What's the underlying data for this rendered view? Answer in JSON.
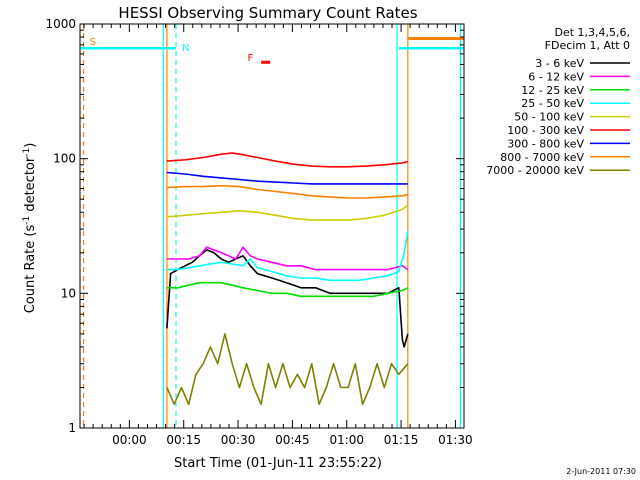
{
  "chart_data": {
    "type": "line",
    "title": "HESSI Observing Summary Count Rates",
    "xlabel": "Start Time (01-Jun-11 23:55:22)",
    "ylabel_parts": [
      "Count Rate (s",
      "-1",
      " detector",
      "-1",
      ")"
    ],
    "yscale": "log",
    "ylim": [
      1,
      1000
    ],
    "xlim_minutes": [
      -9.0,
      97.0
    ],
    "y_ticks": [
      {
        "value": 1,
        "label": "1"
      },
      {
        "value": 10,
        "label": "10"
      },
      {
        "value": 100,
        "label": "100"
      },
      {
        "value": 1000,
        "label": "1000"
      }
    ],
    "x_ticks": [
      {
        "value": 4.63,
        "label": "00:00"
      },
      {
        "value": 19.63,
        "label": "00:15"
      },
      {
        "value": 34.63,
        "label": "00:30"
      },
      {
        "value": 49.63,
        "label": "00:45"
      },
      {
        "value": 64.63,
        "label": "01:00"
      },
      {
        "value": 79.63,
        "label": "01:15"
      },
      {
        "value": 94.63,
        "label": "01:30"
      }
    ],
    "legend": {
      "placement": "right",
      "header": [
        "Det 1,3,4,5,6,",
        "FDecim 1, Att 0"
      ],
      "entries": [
        {
          "label": "3 - 6 keV",
          "color": "#000000"
        },
        {
          "label": "6 - 12 keV",
          "color": "#ff00ff"
        },
        {
          "label": "12 - 25 keV",
          "color": "#00dd00"
        },
        {
          "label": "25 - 50 keV",
          "color": "#00ffff"
        },
        {
          "label": "50 - 100 keV",
          "color": "#cccc00"
        },
        {
          "label": "100 - 300 keV",
          "color": "#ff0000"
        },
        {
          "label": "300 - 800 keV",
          "color": "#0000ff"
        },
        {
          "label": "800 - 7000 keV",
          "color": "#ff8000"
        },
        {
          "label": "7000 - 20000 keV",
          "color": "#808000"
        }
      ]
    },
    "series": [
      {
        "name": "3 - 6 keV",
        "color": "#000000",
        "x": [
          15,
          16,
          18,
          20,
          22,
          24,
          26,
          28,
          30,
          32,
          34,
          36,
          38,
          40,
          44,
          48,
          52,
          56,
          60,
          64,
          68,
          72,
          76,
          79,
          80,
          80.5,
          81.5
        ],
        "y": [
          5.5,
          14,
          15,
          16,
          17,
          19,
          21,
          20,
          18,
          17,
          18,
          19,
          16,
          14,
          13,
          12,
          11,
          11,
          10,
          10,
          10,
          10,
          10,
          11,
          4.5,
          4,
          5
        ]
      },
      {
        "name": "6 - 12 keV",
        "color": "#ff00ff",
        "x": [
          15,
          18,
          21,
          24,
          26,
          28,
          30,
          32,
          34,
          36,
          38,
          40,
          44,
          48,
          52,
          56,
          60,
          64,
          68,
          72,
          76,
          80,
          81.5
        ],
        "y": [
          18,
          18,
          18,
          19,
          22,
          21,
          20,
          19,
          18,
          22,
          19,
          18,
          17,
          16,
          16,
          15,
          15,
          15,
          15,
          15,
          15,
          16,
          15
        ]
      },
      {
        "name": "12 - 25 keV",
        "color": "#00dd00",
        "x": [
          15,
          18,
          21,
          24,
          27,
          30,
          33,
          36,
          40,
          44,
          48,
          52,
          56,
          60,
          64,
          68,
          72,
          76,
          80,
          81.5
        ],
        "y": [
          11,
          11,
          11.5,
          12,
          12,
          12,
          11.5,
          11,
          10.5,
          10,
          10,
          9.5,
          9.5,
          9.5,
          9.5,
          9.5,
          9.5,
          10,
          10.5,
          11
        ]
      },
      {
        "name": "25 - 50 keV",
        "color": "#00ffff",
        "x": [
          15,
          18,
          21,
          24,
          27,
          30,
          33,
          36,
          38,
          40,
          44,
          48,
          52,
          56,
          60,
          64,
          68,
          72,
          76,
          79,
          80.5,
          81.5
        ],
        "y": [
          15,
          15,
          15.5,
          16,
          16.5,
          17,
          16.5,
          16,
          18,
          15.5,
          14.5,
          13.5,
          13,
          13,
          12.5,
          12.5,
          12.5,
          13,
          13.5,
          14.5,
          20,
          29
        ]
      },
      {
        "name": "50 - 100 keV",
        "color": "#cccc00",
        "x": [
          15,
          20,
          25,
          30,
          35,
          40,
          45,
          50,
          55,
          60,
          65,
          70,
          75,
          80,
          81.5
        ],
        "y": [
          37,
          38,
          39,
          40,
          41,
          40,
          38,
          36,
          35,
          35,
          35,
          36,
          38,
          42,
          45
        ]
      },
      {
        "name": "100 - 300 keV",
        "color": "#ff0000",
        "x": [
          15,
          20,
          25,
          30,
          33,
          36,
          40,
          45,
          50,
          55,
          60,
          65,
          70,
          75,
          80,
          81.5
        ],
        "y": [
          96,
          98,
          102,
          108,
          110,
          107,
          102,
          96,
          91,
          88,
          87,
          87,
          88,
          90,
          93,
          95
        ]
      },
      {
        "name": "300 - 800 keV",
        "color": "#0000ff",
        "x": [
          15,
          20,
          25,
          30,
          35,
          40,
          45,
          50,
          55,
          60,
          65,
          70,
          75,
          80,
          81.5
        ],
        "y": [
          79,
          77,
          74,
          72,
          70,
          68,
          67,
          66,
          65,
          65,
          65,
          65,
          65,
          65,
          65
        ]
      },
      {
        "name": "800 - 7000 keV",
        "color": "#ff8000",
        "x": [
          15,
          20,
          25,
          30,
          35,
          40,
          45,
          50,
          55,
          60,
          65,
          70,
          75,
          80,
          81.5
        ],
        "y": [
          61,
          62,
          62,
          63,
          62,
          59,
          57,
          55,
          53,
          52,
          51,
          51,
          52,
          53,
          54
        ]
      },
      {
        "name": "7000 - 20000 keV",
        "color": "#808000",
        "x": [
          15,
          17,
          19,
          21,
          23,
          25,
          27,
          29,
          31,
          33,
          35,
          37,
          39,
          41,
          43,
          45,
          47,
          49,
          51,
          53,
          55,
          57,
          59,
          61,
          63,
          65,
          67,
          69,
          71,
          73,
          75,
          77,
          79,
          81.5
        ],
        "y": [
          2,
          1.5,
          2,
          1.5,
          2.5,
          3,
          4,
          3,
          5,
          3,
          2,
          3,
          2,
          1.5,
          3,
          2,
          3,
          2,
          2.5,
          2,
          3,
          1.5,
          2,
          3,
          2,
          2,
          3,
          1.5,
          2,
          3,
          2,
          3,
          2.5,
          3
        ]
      }
    ],
    "events": [
      {
        "label": "S",
        "x": -8.0,
        "color": "#ff8000"
      },
      {
        "label": "N",
        "x": 17.5,
        "color": "#00ffff"
      },
      {
        "label": "F",
        "x": 40.0,
        "color": "#ff0000"
      }
    ],
    "cyan_vlines": [
      14.0,
      78.5,
      96.0
    ],
    "orange_vlines": [
      15.0,
      81.5
    ],
    "cyan_dashed": [
      17.5,
      96.0
    ],
    "orange_dashed": [
      -8.0
    ],
    "cyan_bands": [
      {
        "x0": -9.0,
        "x1": 17.5,
        "y": 660
      },
      {
        "x0": 79.0,
        "x1": 97.0,
        "y": 660
      }
    ],
    "orange_band": {
      "x0": 81.5,
      "x1": 97.0,
      "y": 780
    },
    "flare_marker": {
      "x0": 41.0,
      "x1": 43.5,
      "y": 520,
      "color": "#ff0000"
    }
  },
  "footer": {
    "timestamp": "2-Jun-2011 07:30"
  }
}
